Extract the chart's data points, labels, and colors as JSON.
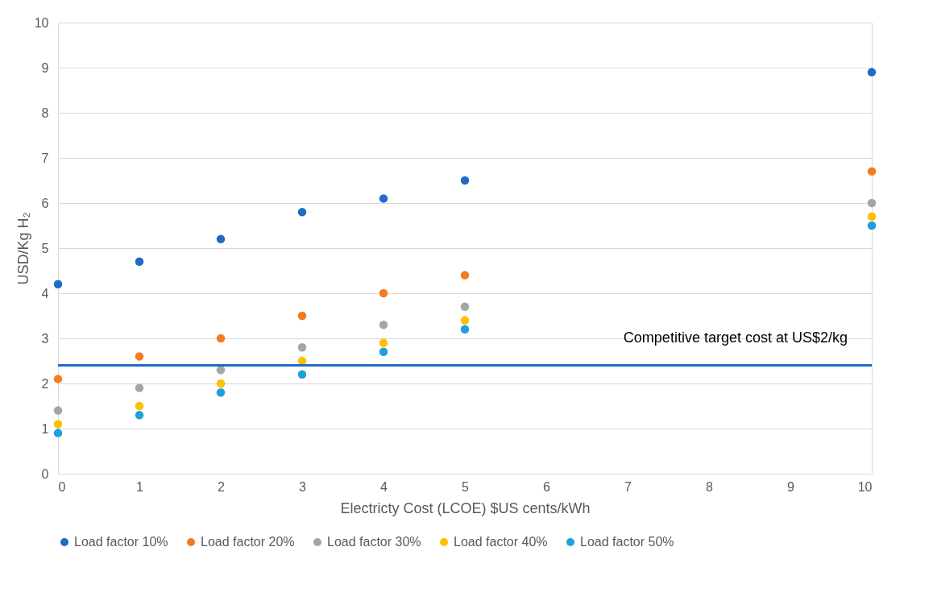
{
  "chart_data": {
    "type": "scatter",
    "xlabel": "Electricty Cost (LCOE) $US cents/kWh",
    "ylabel": "USD/Kg H₂",
    "x": [
      0,
      1,
      2,
      3,
      4,
      5,
      10
    ],
    "series": [
      {
        "name": "Load factor 10%",
        "color": "#1f6cc4",
        "values": [
          4.2,
          4.7,
          5.2,
          5.8,
          6.1,
          6.5,
          8.9
        ]
      },
      {
        "name": "Load factor 20%",
        "color": "#f47b20",
        "values": [
          2.1,
          2.6,
          3.0,
          3.5,
          4.0,
          4.4,
          6.7
        ]
      },
      {
        "name": "Load factor 30%",
        "color": "#a5a5a5",
        "values": [
          1.4,
          1.9,
          2.3,
          2.8,
          3.3,
          3.7,
          6.0
        ]
      },
      {
        "name": "Load factor 40%",
        "color": "#ffc000",
        "values": [
          1.1,
          1.5,
          2.0,
          2.5,
          2.9,
          3.4,
          5.7
        ]
      },
      {
        "name": "Load factor 50%",
        "color": "#1f9fdc",
        "values": [
          0.9,
          1.3,
          1.8,
          2.2,
          2.7,
          3.2,
          5.5
        ]
      }
    ],
    "xlim": [
      0,
      10
    ],
    "xticks": [
      0,
      1,
      2,
      3,
      4,
      5,
      6,
      7,
      8,
      9,
      10
    ],
    "ylim": [
      0,
      10
    ],
    "yticks": [
      0,
      1,
      2,
      3,
      4,
      5,
      6,
      7,
      8,
      9,
      10
    ],
    "ref_lines": [
      {
        "axis": "y",
        "value": 2.4,
        "label": "Competitive target cost at US$2/kg",
        "color": "#1f6cc4"
      }
    ],
    "grid": "y",
    "legend": "bottom",
    "marker": "circle"
  }
}
